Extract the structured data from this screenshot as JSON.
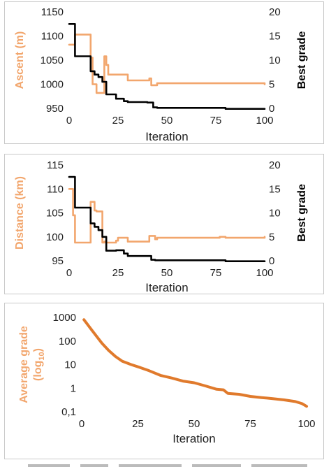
{
  "colors": {
    "series_orange": "#f2a66d",
    "series_black": "#000000",
    "series_dark_orange": "#e07a2c",
    "axis_label_orange": "#f2a66d",
    "border": "#c9c9c9"
  },
  "chart_data": [
    {
      "type": "line",
      "xlabel": "Iteration",
      "ylabel": "Ascent (m)",
      "y2label": "Best grade",
      "xlim": [
        0,
        100
      ],
      "ylim": [
        950,
        1150
      ],
      "y2lim": [
        0,
        20
      ],
      "x_ticks": [
        "0",
        "25",
        "50",
        "75",
        "100"
      ],
      "y_ticks": [
        "950",
        "1000",
        "1050",
        "1100",
        "1150"
      ],
      "y2_ticks": [
        "0",
        "5",
        "10",
        "15",
        "20"
      ],
      "series": [
        {
          "axis": "left",
          "color": "#f2a66d",
          "step": true,
          "x": [
            0,
            2,
            3,
            10,
            11,
            12,
            13,
            14,
            17,
            18,
            19,
            20,
            21,
            29,
            30,
            40,
            41,
            42,
            43,
            45,
            78,
            100
          ],
          "y": [
            1082,
            1082,
            1103,
            1103,
            1055,
            1000,
            1000,
            982,
            982,
            1058,
            1040,
            1020,
            1020,
            1020,
            1008,
            1008,
            1012,
            998,
            998,
            1002,
            1002,
            1000
          ]
        },
        {
          "axis": "right",
          "color": "#000000",
          "step": true,
          "x": [
            0,
            2,
            3,
            10,
            11,
            13,
            15,
            17,
            19,
            24,
            28,
            30,
            40,
            43,
            45,
            78,
            80,
            100
          ],
          "y": [
            17.5,
            17.5,
            10.8,
            10.8,
            7.7,
            7.0,
            6.5,
            5.5,
            2.9,
            2.0,
            1.5,
            1.3,
            1.2,
            0.2,
            0.1,
            0.1,
            -0.1,
            -0.1
          ]
        }
      ]
    },
    {
      "type": "line",
      "xlabel": "Iteration",
      "ylabel": "Distance (km)",
      "y2label": "Best grade",
      "xlim": [
        0,
        100
      ],
      "ylim": [
        95,
        115
      ],
      "y2lim": [
        0,
        20
      ],
      "x_ticks": [
        "0",
        "25",
        "50",
        "75",
        "100"
      ],
      "y_ticks": [
        "95",
        "100",
        "105",
        "110",
        "115"
      ],
      "y2_ticks": [
        "0",
        "5",
        "10",
        "15",
        "20"
      ],
      "series": [
        {
          "axis": "left",
          "color": "#f2a66d",
          "step": true,
          "x": [
            0,
            1,
            2,
            3,
            10,
            11,
            13,
            14,
            17,
            18,
            19,
            24,
            25,
            29,
            30,
            40,
            41,
            43,
            44,
            45,
            77,
            80,
            100
          ],
          "y": [
            110,
            110,
            104.5,
            98.8,
            98.8,
            107.3,
            105.5,
            105.3,
            98.8,
            99.0,
            98.8,
            99.2,
            99.8,
            99.8,
            99.0,
            99.0,
            100.2,
            100.2,
            99.5,
            99.8,
            100.0,
            99.8,
            100.0
          ]
        },
        {
          "axis": "right",
          "color": "#000000",
          "step": true,
          "x": [
            0,
            2,
            3,
            10,
            11,
            13,
            15,
            17,
            19,
            24,
            28,
            30,
            40,
            42,
            44,
            78,
            80,
            100
          ],
          "y": [
            17.5,
            17.5,
            11.1,
            11.1,
            7.8,
            7.1,
            6.4,
            5.0,
            2.1,
            2.2,
            1.5,
            1.0,
            1.0,
            0.2,
            0.1,
            0.1,
            -0.1,
            -0.1
          ]
        }
      ]
    },
    {
      "type": "line",
      "xlabel": "Iteration",
      "ylabel": "Average grade (log10)",
      "ylabel_main": "Average grade",
      "ylabel_paren_open": "(log",
      "ylabel_sub": "10",
      "ylabel_paren_close": ")",
      "yscale": "log",
      "xlim": [
        0,
        100
      ],
      "ylim": [
        0.1,
        1000
      ],
      "x_ticks": [
        "0",
        "25",
        "50",
        "75",
        "100"
      ],
      "y_ticks": [
        "0,1",
        "1",
        "10",
        "100",
        "1000"
      ],
      "series": [
        {
          "axis": "left",
          "color": "#e07a2c",
          "step": false,
          "x": [
            1,
            5,
            9,
            12,
            15,
            18,
            22,
            26,
            30,
            35,
            40,
            45,
            50,
            55,
            60,
            63,
            65,
            70,
            75,
            80,
            85,
            90,
            95,
            98,
            100
          ],
          "y": [
            800,
            250,
            80,
            40,
            22,
            14,
            10,
            7.5,
            5.5,
            3.5,
            2.7,
            2.0,
            1.7,
            1.25,
            0.9,
            0.85,
            0.6,
            0.55,
            0.45,
            0.4,
            0.36,
            0.32,
            0.27,
            0.22,
            0.17
          ]
        }
      ]
    }
  ]
}
